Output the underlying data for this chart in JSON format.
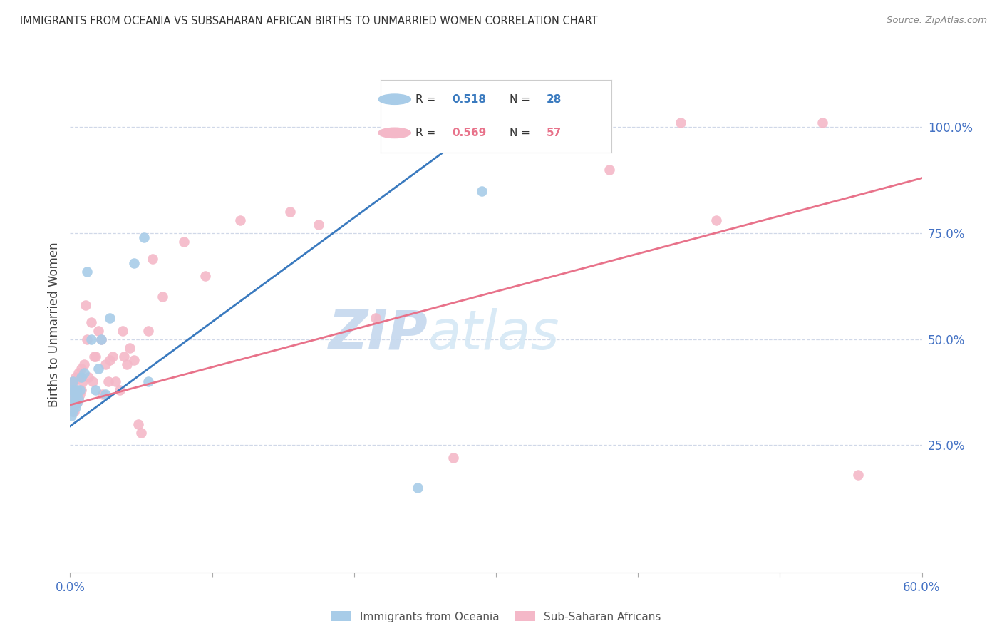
{
  "title": "IMMIGRANTS FROM OCEANIA VS SUBSAHARAN AFRICAN BIRTHS TO UNMARRIED WOMEN CORRELATION CHART",
  "source": "Source: ZipAtlas.com",
  "ylabel": "Births to Unmarried Women",
  "blue_R": "0.518",
  "blue_N": "28",
  "pink_R": "0.569",
  "pink_N": "57",
  "blue_label": "Immigrants from Oceania",
  "pink_label": "Sub-Saharan Africans",
  "blue_color": "#a8cce8",
  "pink_color": "#f4b8c8",
  "blue_line_color": "#3a7abf",
  "pink_line_color": "#e8728a",
  "legend_border_color": "#cccccc",
  "watermark_text": "ZIPatlas",
  "watermark_color": "#d0e4f5",
  "tick_color": "#4472c4",
  "grid_color": "#d0d8e8",
  "xlim": [
    0.0,
    0.6
  ],
  "ylim": [
    -0.05,
    1.12
  ],
  "yticks": [
    0.0,
    0.25,
    0.5,
    0.75,
    1.0
  ],
  "ytick_labels": [
    "",
    "25.0%",
    "50.0%",
    "75.0%",
    "100.0%"
  ],
  "xtick_positions": [
    0.0,
    0.1,
    0.2,
    0.3,
    0.4,
    0.5,
    0.6
  ],
  "xtick_labels": [
    "0.0%",
    "",
    "",
    "",
    "",
    "",
    "60.0%"
  ],
  "blue_line_x": [
    0.0,
    0.295
  ],
  "blue_line_y": [
    0.295,
    1.02
  ],
  "pink_line_x": [
    0.0,
    0.6
  ],
  "pink_line_y": [
    0.345,
    0.88
  ],
  "blue_scatter_x": [
    0.001,
    0.001,
    0.001,
    0.002,
    0.002,
    0.002,
    0.003,
    0.003,
    0.004,
    0.004,
    0.005,
    0.005,
    0.006,
    0.007,
    0.008,
    0.01,
    0.012,
    0.015,
    0.018,
    0.02,
    0.022,
    0.025,
    0.028,
    0.045,
    0.052,
    0.055,
    0.245,
    0.29
  ],
  "blue_scatter_y": [
    0.32,
    0.35,
    0.38,
    0.33,
    0.37,
    0.4,
    0.35,
    0.38,
    0.34,
    0.37,
    0.35,
    0.38,
    0.36,
    0.38,
    0.41,
    0.42,
    0.66,
    0.5,
    0.38,
    0.43,
    0.5,
    0.37,
    0.55,
    0.68,
    0.74,
    0.4,
    0.15,
    0.85
  ],
  "pink_scatter_x": [
    0.001,
    0.001,
    0.002,
    0.002,
    0.003,
    0.003,
    0.003,
    0.004,
    0.004,
    0.005,
    0.005,
    0.006,
    0.006,
    0.007,
    0.007,
    0.008,
    0.008,
    0.009,
    0.01,
    0.011,
    0.012,
    0.013,
    0.015,
    0.016,
    0.017,
    0.018,
    0.02,
    0.022,
    0.023,
    0.025,
    0.027,
    0.028,
    0.03,
    0.032,
    0.035,
    0.037,
    0.038,
    0.04,
    0.042,
    0.045,
    0.048,
    0.05,
    0.055,
    0.058,
    0.065,
    0.08,
    0.095,
    0.12,
    0.155,
    0.175,
    0.215,
    0.27,
    0.38,
    0.43,
    0.455,
    0.53,
    0.555
  ],
  "pink_scatter_y": [
    0.35,
    0.38,
    0.36,
    0.4,
    0.33,
    0.36,
    0.4,
    0.37,
    0.41,
    0.35,
    0.38,
    0.36,
    0.42,
    0.37,
    0.41,
    0.38,
    0.43,
    0.4,
    0.44,
    0.58,
    0.5,
    0.41,
    0.54,
    0.4,
    0.46,
    0.46,
    0.52,
    0.5,
    0.37,
    0.44,
    0.4,
    0.45,
    0.46,
    0.4,
    0.38,
    0.52,
    0.46,
    0.44,
    0.48,
    0.45,
    0.3,
    0.28,
    0.52,
    0.69,
    0.6,
    0.73,
    0.65,
    0.78,
    0.8,
    0.77,
    0.55,
    0.22,
    0.9,
    1.01,
    0.78,
    1.01,
    0.18
  ],
  "background_color": "#ffffff"
}
